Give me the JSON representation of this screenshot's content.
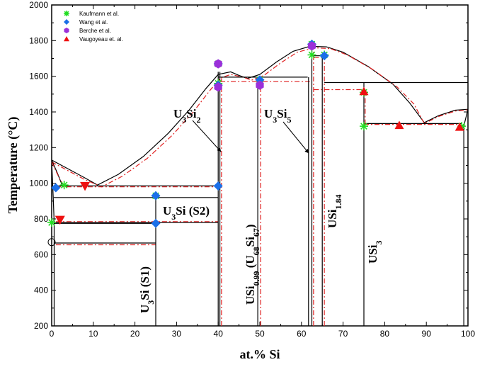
{
  "chart_data": {
    "type": "scatter",
    "xlabel": "at.% Si",
    "ylabel": "Temperature (°C)",
    "xlim": [
      0,
      100
    ],
    "ylim": [
      200,
      2000
    ],
    "xticks": [
      0,
      10,
      20,
      30,
      40,
      50,
      60,
      70,
      80,
      90,
      100
    ],
    "yticks": [
      200,
      400,
      600,
      800,
      1000,
      1200,
      1400,
      1600,
      1800,
      2000
    ],
    "grid": false,
    "legend_position": "top-left",
    "series": [
      {
        "name": "Kaufmann et al.",
        "marker": "asterisk",
        "color": "#22dd22",
        "points": [
          [
            0,
            780
          ],
          [
            3,
            990
          ],
          [
            25,
            930
          ],
          [
            40,
            1560
          ],
          [
            40,
            1670
          ],
          [
            50,
            1580
          ],
          [
            62.5,
            1720
          ],
          [
            62.5,
            1780
          ],
          [
            65.5,
            1720
          ],
          [
            75,
            1320
          ],
          [
            75,
            1510
          ],
          [
            98.5,
            1320
          ]
        ]
      },
      {
        "name": "Wang et al.",
        "marker": "diamond",
        "color": "#1a6fe8",
        "points": [
          [
            1,
            975
          ],
          [
            25,
            775
          ],
          [
            25,
            930
          ],
          [
            40,
            985
          ],
          [
            40,
            1550
          ],
          [
            40,
            1670
          ],
          [
            50,
            1580
          ],
          [
            62.5,
            1780
          ],
          [
            65.5,
            1715
          ]
        ]
      },
      {
        "name": "Berche et al.",
        "marker": "hexagon",
        "color": "#9b30d9",
        "points": [
          [
            40,
            1540
          ],
          [
            40,
            1670
          ],
          [
            50,
            1550
          ],
          [
            62.5,
            1770
          ]
        ]
      },
      {
        "name": "Vaugoyeau et. al.",
        "marker": "triangle",
        "color": "#ee1111",
        "points": [
          [
            2,
            795
          ],
          [
            8,
            985
          ],
          [
            75,
            1515
          ],
          [
            83.5,
            1325
          ],
          [
            98,
            1315
          ]
        ]
      }
    ],
    "annotations": [
      {
        "text": "U3Si2",
        "parts": [
          [
            "U",
            0
          ],
          [
            "3",
            1
          ],
          [
            "Si",
            0
          ],
          [
            "2",
            1
          ]
        ]
      },
      {
        "text": "U3Si5",
        "parts": [
          [
            "U",
            0
          ],
          [
            "3",
            1
          ],
          [
            "Si",
            0
          ],
          [
            "5",
            1
          ]
        ]
      },
      {
        "text": "U3Si (S2)",
        "parts": [
          [
            "U",
            0
          ],
          [
            "3",
            1
          ],
          [
            "Si (S2)",
            0
          ]
        ]
      },
      {
        "text": "U3Si (S1)",
        "parts": [
          [
            "U",
            0
          ],
          [
            "3",
            1
          ],
          [
            "Si (S1)",
            0
          ]
        ]
      },
      {
        "text": "USi0.99 (U68Si67)",
        "parts": [
          [
            "USi",
            0
          ],
          [
            "0.99",
            1
          ],
          [
            " (U",
            0
          ],
          [
            "68",
            1
          ],
          [
            "Si",
            0
          ],
          [
            "67",
            1
          ],
          [
            ")",
            0
          ]
        ]
      },
      {
        "text": "USi1.84",
        "parts": [
          [
            "USi",
            0
          ],
          [
            "1.84",
            1
          ]
        ]
      },
      {
        "text": "USi3",
        "parts": [
          [
            "USi",
            0
          ],
          [
            "3",
            1
          ]
        ]
      }
    ]
  }
}
